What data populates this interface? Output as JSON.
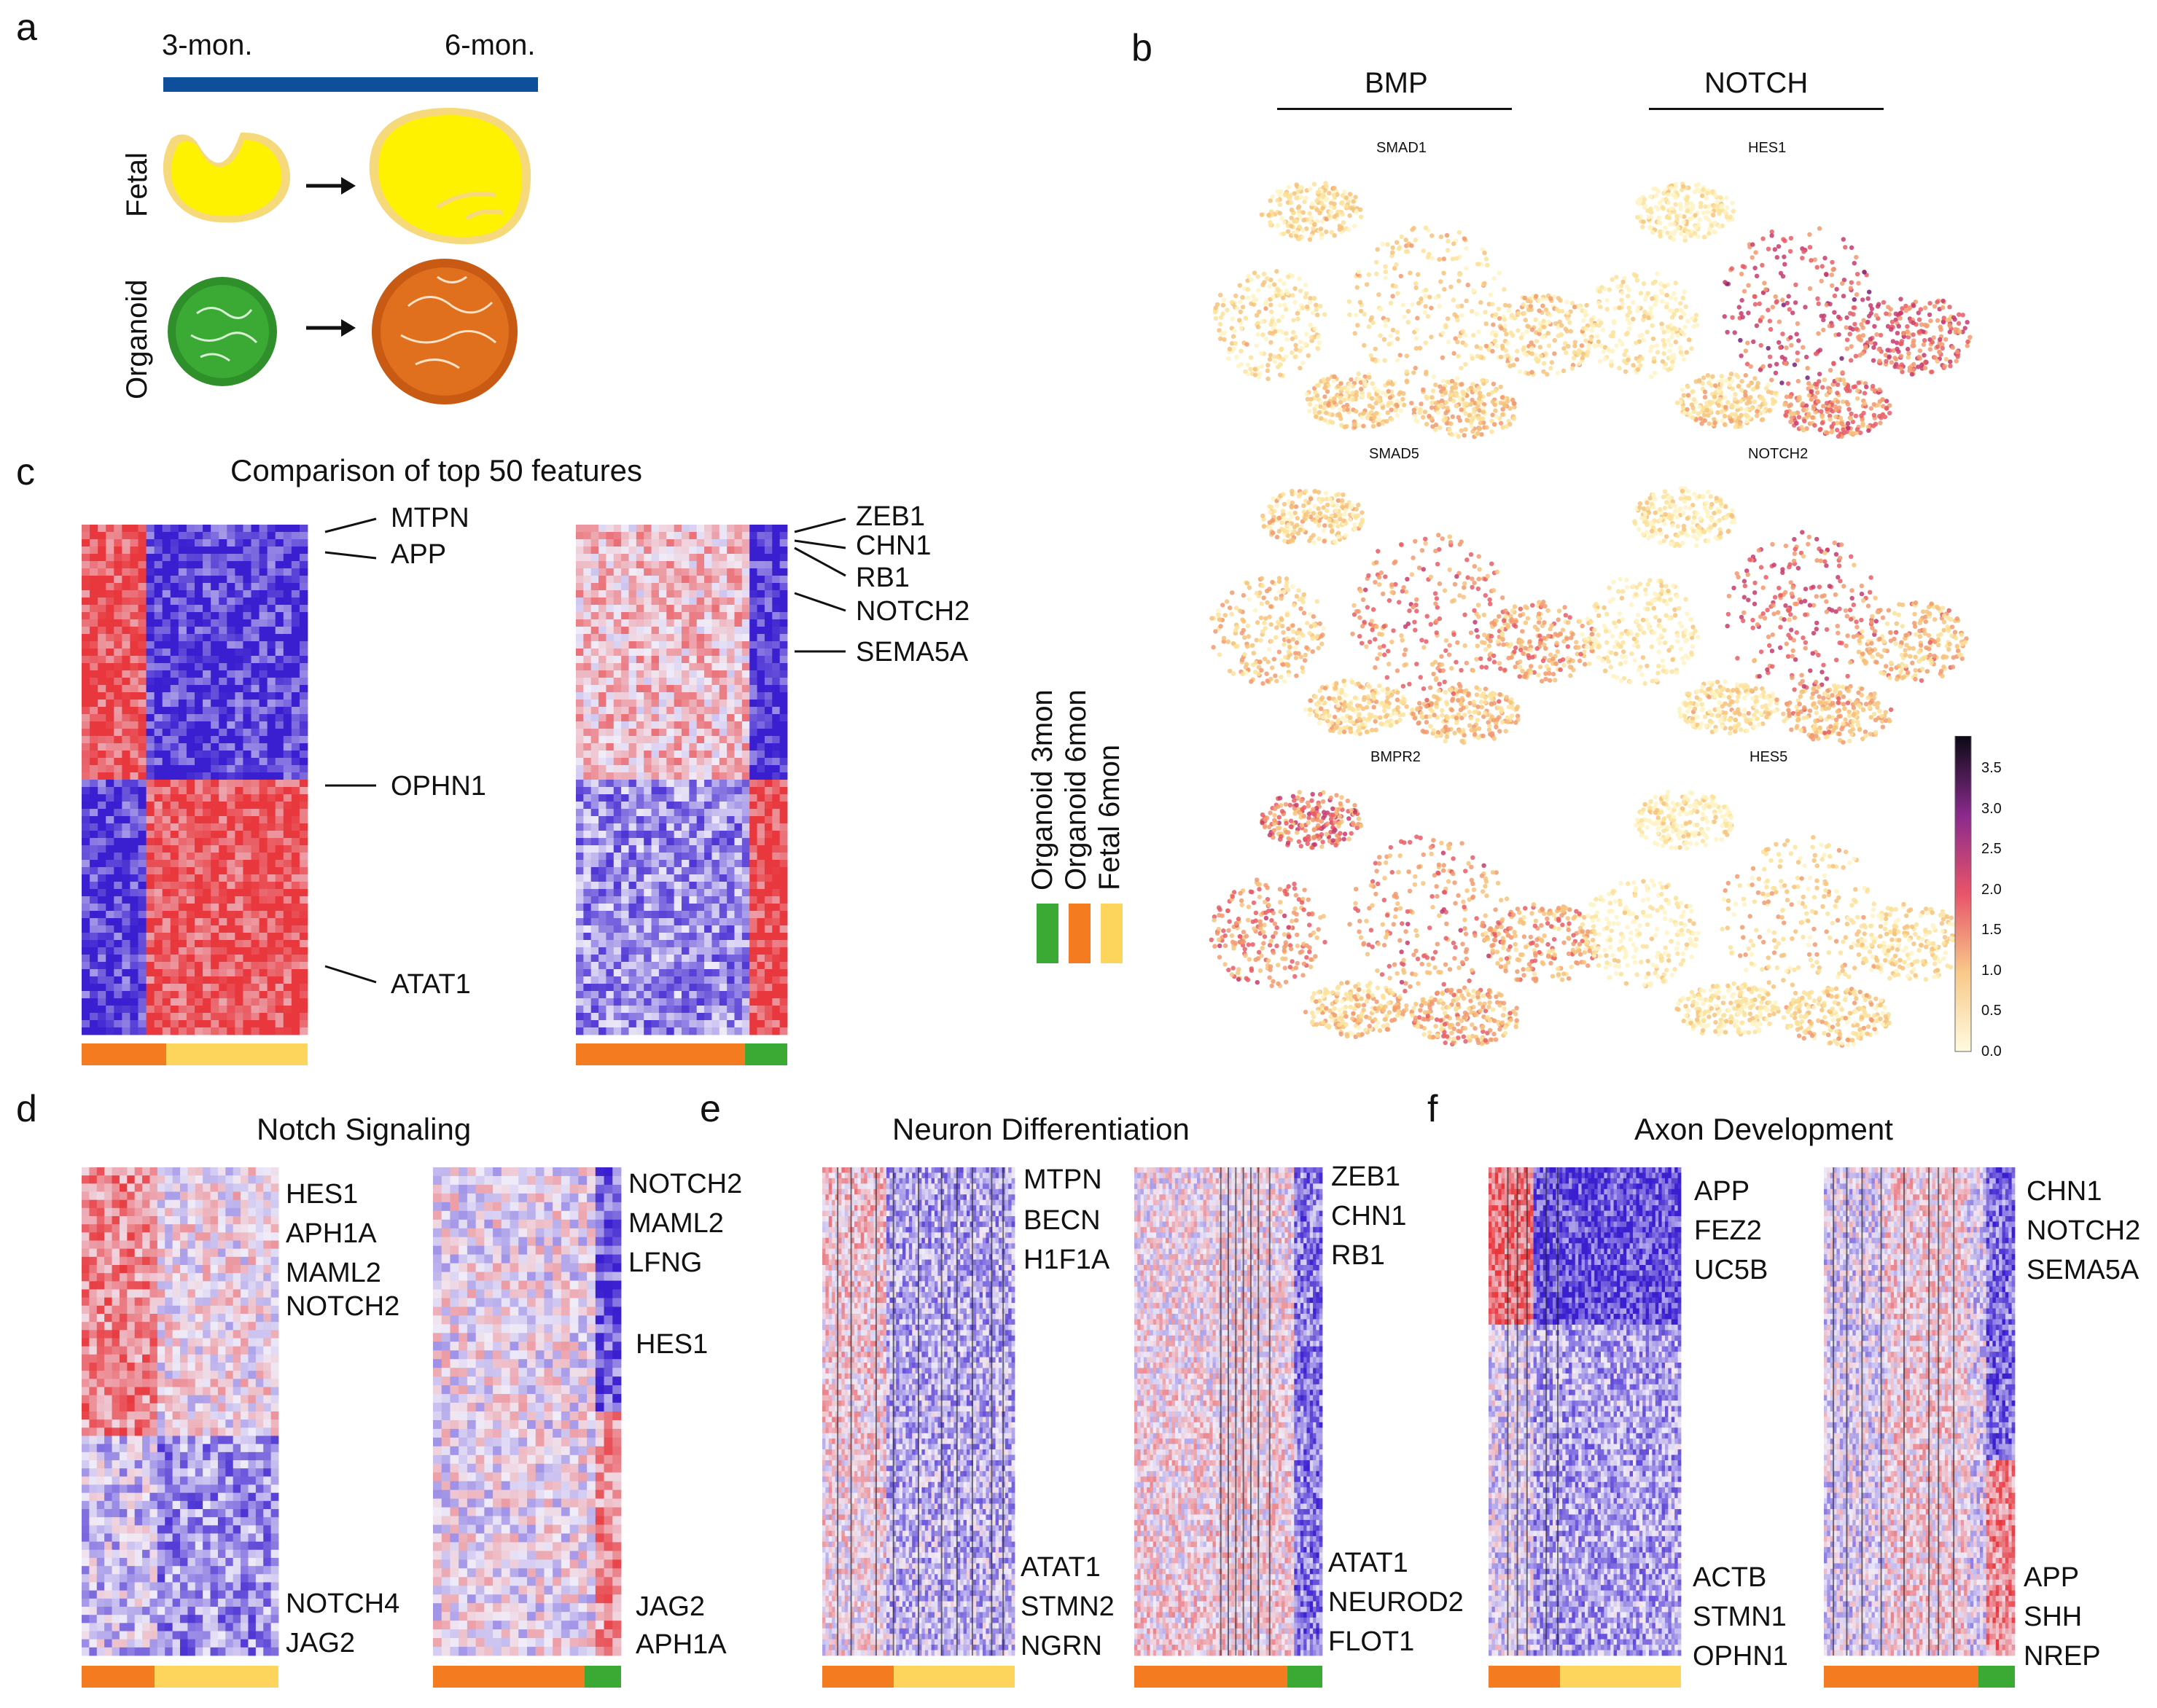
{
  "panel_labels": {
    "a": "a",
    "b": "b",
    "c": "c",
    "d": "d",
    "e": "e",
    "f": "f"
  },
  "panel_a": {
    "timeline_start": "3-mon.",
    "timeline_end": "6-mon.",
    "row_fetal": "Fetal",
    "row_organoid": "Organoid"
  },
  "panel_b": {
    "col_bmp": "BMP",
    "col_notch": "NOTCH",
    "genes": [
      "SMAD1",
      "HES1",
      "SMAD5",
      "NOTCH2",
      "BMPR2",
      "HES5"
    ],
    "colorbar_ticks": [
      "3.5",
      "3.0",
      "2.5",
      "2.0",
      "1.5",
      "1.0",
      "0.5",
      "0.0"
    ]
  },
  "panel_c": {
    "title": "Comparison of top 50 features",
    "left_genes": [
      "MTPN",
      "APP",
      "OPHN1",
      "ATAT1"
    ],
    "right_genes": [
      "ZEB1",
      "CHN1",
      "RB1",
      "NOTCH2",
      "SEMA5A"
    ]
  },
  "legend": {
    "items": [
      {
        "label": "Organoid 3mon",
        "color": "#3aaa35"
      },
      {
        "label": "Organoid 6mon",
        "color": "#f47b20"
      },
      {
        "label": "Fetal 6mon",
        "color": "#fdd55c"
      }
    ]
  },
  "panel_d": {
    "title": "Notch Signaling",
    "left_genes_top": [
      "HES1",
      "APH1A",
      "MAML2",
      "NOTCH2"
    ],
    "left_genes_bottom": [
      "NOTCH4",
      "JAG2"
    ],
    "right_genes_top": [
      "NOTCH2",
      "MAML2",
      "LFNG",
      "HES1"
    ],
    "right_genes_bottom": [
      "JAG2",
      "APH1A"
    ]
  },
  "panel_e": {
    "title": "Neuron Differentiation",
    "left_genes_top": [
      "MTPN",
      "BECN",
      "H1F1A"
    ],
    "left_genes_bottom": [
      "ATAT1",
      "STMN2",
      "NGRN"
    ],
    "right_genes_top": [
      "ZEB1",
      "CHN1",
      "RB1"
    ],
    "right_genes_bottom": [
      "ATAT1",
      "NEUROD2",
      "FLOT1"
    ]
  },
  "panel_f": {
    "title": "Axon Development",
    "left_genes_top": [
      "APP",
      "FEZ2",
      "UC5B"
    ],
    "left_genes_bottom": [
      "ACTB",
      "STMN1",
      "OPHN1"
    ],
    "right_genes_top": [
      "CHN1",
      "NOTCH2",
      "SEMA5A"
    ],
    "right_genes_bottom": [
      "APP",
      "SHH",
      "NREP"
    ]
  },
  "colors": {
    "heat_red": "#e8383d",
    "heat_blue": "#3a1fd0",
    "bar_orange": "#f47b20",
    "bar_yellow": "#fdd55c",
    "bar_green": "#3aaa35",
    "timeline_blue": "#0d4f9a"
  }
}
